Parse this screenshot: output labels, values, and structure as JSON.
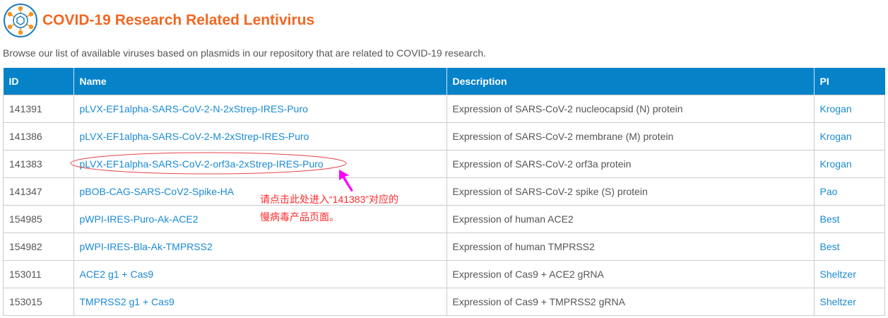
{
  "header": {
    "title": "COVID-19 Research Related Lentivirus",
    "logo_icon": "virus-icon"
  },
  "intro": "Browse our list of available viruses based on plasmids in our repository that are related to COVID-19 research.",
  "table": {
    "columns": [
      "ID",
      "Name",
      "Description",
      "PI"
    ],
    "rows": [
      {
        "id": "141391",
        "name": "pLVX-EF1alpha-SARS-CoV-2-N-2xStrep-IRES-Puro",
        "description": "Expression of SARS-CoV-2 nucleocapsid (N) protein",
        "pi": "Krogan"
      },
      {
        "id": "141386",
        "name": "pLVX-EF1alpha-SARS-CoV-2-M-2xStrep-IRES-Puro",
        "description": "Expression of SARS-CoV-2 membrane (M) protein",
        "pi": "Krogan"
      },
      {
        "id": "141383",
        "name": "pLVX-EF1alpha-SARS-CoV-2-orf3a-2xStrep-IRES-Puro",
        "description": "Expression of SARS-CoV-2 orf3a protein",
        "pi": "Krogan"
      },
      {
        "id": "141347",
        "name": "pBOB-CAG-SARS-CoV2-Spike-HA",
        "description": "Expression of SARS-CoV-2 spike (S) protein",
        "pi": "Pao"
      },
      {
        "id": "154985",
        "name": "pWPI-IRES-Puro-Ak-ACE2",
        "description": "Expression of human ACE2",
        "pi": "Best"
      },
      {
        "id": "154982",
        "name": "pWPI-IRES-Bla-Ak-TMPRSS2",
        "description": "Expression of human TMPRSS2",
        "pi": "Best"
      },
      {
        "id": "153011",
        "name": "ACE2 g1 + Cas9",
        "description": "Expression of Cas9 + ACE2 gRNA",
        "pi": "Sheltzer"
      },
      {
        "id": "153015",
        "name": "TMPRSS2 g1 + Cas9",
        "description": "Expression of Cas9 + TMPRSS2 gRNA",
        "pi": "Sheltzer"
      }
    ]
  },
  "annotation": {
    "line1": "请点击此处进入“141383”对应的",
    "line2": "慢病毒产品页面。",
    "color": "#ff2a2a",
    "arrow_color": "#ff00ff"
  }
}
